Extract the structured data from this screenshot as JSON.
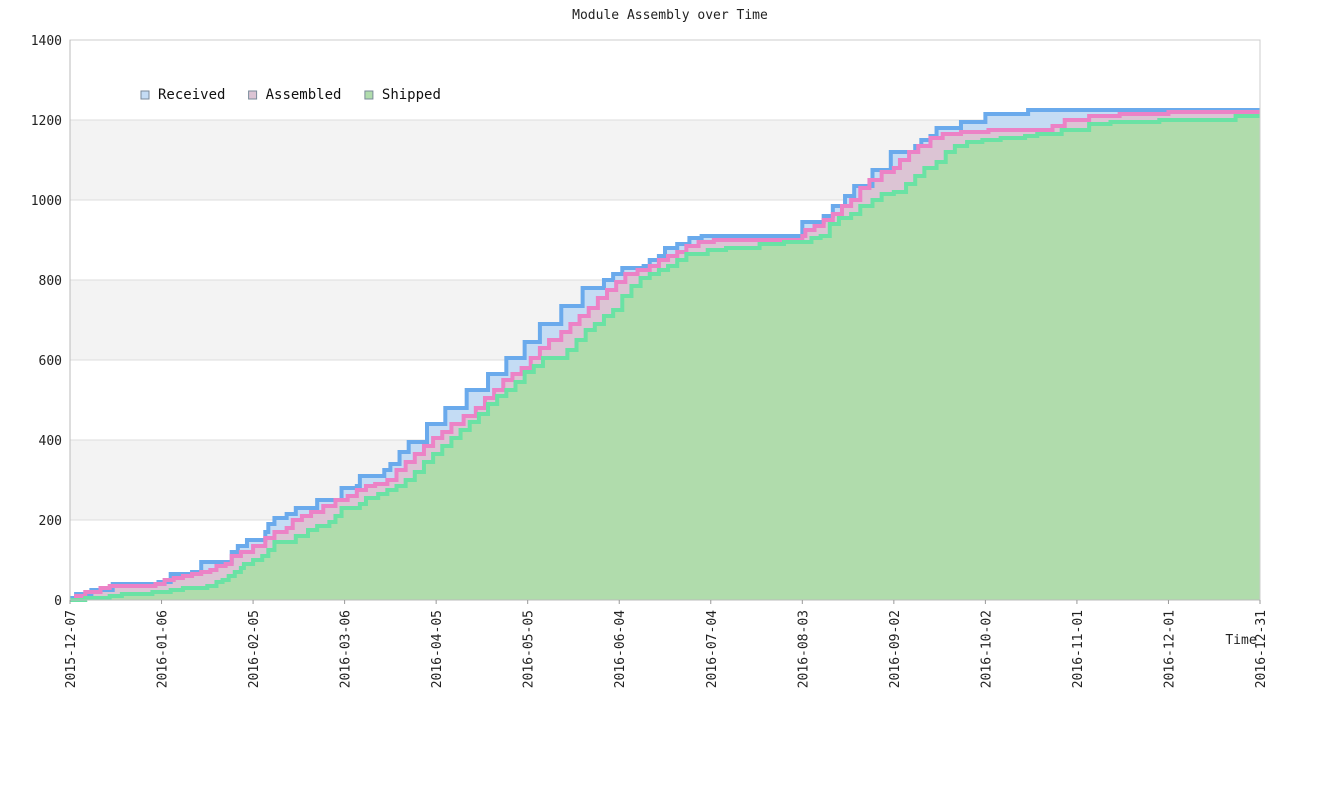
{
  "chart_data": {
    "type": "area",
    "title": "Module Assembly over Time",
    "xlabel": "Time",
    "ylabel": "",
    "ylim": [
      0,
      1400
    ],
    "yticks": [
      0,
      200,
      400,
      600,
      800,
      1000,
      1200,
      1400
    ],
    "xlim": [
      "2015-12-07",
      "2016-12-31"
    ],
    "xticks": [
      "2015-12-07",
      "2016-01-06",
      "2016-02-05",
      "2016-03-06",
      "2016-04-05",
      "2016-05-05",
      "2016-06-04",
      "2016-07-04",
      "2016-08-03",
      "2016-09-02",
      "2016-10-02",
      "2016-11-01",
      "2016-12-01",
      "2016-12-31"
    ],
    "grid": "horizontal alternating bands",
    "legend_placement": "top-left",
    "step": true,
    "series": [
      {
        "name": "Received",
        "color": "#6aaaec",
        "fill": "#c4dcf4",
        "points": [
          [
            "2015-12-07",
            5
          ],
          [
            "2015-12-09",
            15
          ],
          [
            "2015-12-14",
            25
          ],
          [
            "2015-12-21",
            40
          ],
          [
            "2016-01-05",
            45
          ],
          [
            "2016-01-09",
            65
          ],
          [
            "2016-01-16",
            70
          ],
          [
            "2016-01-19",
            95
          ],
          [
            "2016-01-29",
            120
          ],
          [
            "2016-01-31",
            135
          ],
          [
            "2016-02-03",
            150
          ],
          [
            "2016-02-09",
            170
          ],
          [
            "2016-02-10",
            190
          ],
          [
            "2016-02-12",
            205
          ],
          [
            "2016-02-16",
            215
          ],
          [
            "2016-02-19",
            230
          ],
          [
            "2016-02-26",
            250
          ],
          [
            "2016-03-05",
            280
          ],
          [
            "2016-03-10",
            285
          ],
          [
            "2016-03-11",
            310
          ],
          [
            "2016-03-19",
            325
          ],
          [
            "2016-03-21",
            340
          ],
          [
            "2016-03-24",
            370
          ],
          [
            "2016-03-27",
            395
          ],
          [
            "2016-04-02",
            440
          ],
          [
            "2016-04-08",
            480
          ],
          [
            "2016-04-15",
            525
          ],
          [
            "2016-04-22",
            565
          ],
          [
            "2016-04-28",
            605
          ],
          [
            "2016-05-04",
            645
          ],
          [
            "2016-05-09",
            690
          ],
          [
            "2016-05-16",
            735
          ],
          [
            "2016-05-23",
            780
          ],
          [
            "2016-05-30",
            800
          ],
          [
            "2016-06-02",
            815
          ],
          [
            "2016-06-05",
            830
          ],
          [
            "2016-06-12",
            835
          ],
          [
            "2016-06-14",
            850
          ],
          [
            "2016-06-17",
            860
          ],
          [
            "2016-06-19",
            880
          ],
          [
            "2016-06-23",
            890
          ],
          [
            "2016-06-27",
            905
          ],
          [
            "2016-07-01",
            910
          ],
          [
            "2016-07-31",
            910
          ],
          [
            "2016-08-03",
            945
          ],
          [
            "2016-08-10",
            960
          ],
          [
            "2016-08-13",
            985
          ],
          [
            "2016-08-17",
            1010
          ],
          [
            "2016-08-20",
            1035
          ],
          [
            "2016-08-26",
            1075
          ],
          [
            "2016-09-01",
            1120
          ],
          [
            "2016-09-09",
            1135
          ],
          [
            "2016-09-11",
            1150
          ],
          [
            "2016-09-14",
            1160
          ],
          [
            "2016-09-16",
            1180
          ],
          [
            "2016-09-24",
            1195
          ],
          [
            "2016-10-02",
            1215
          ],
          [
            "2016-10-16",
            1225
          ],
          [
            "2016-12-31",
            1225
          ]
        ]
      },
      {
        "name": "Assembled",
        "color": "#ec82c6",
        "fill": "#dcc4d4",
        "points": [
          [
            "2015-12-07",
            0
          ],
          [
            "2015-12-09",
            10
          ],
          [
            "2015-12-12",
            20
          ],
          [
            "2015-12-17",
            30
          ],
          [
            "2015-12-20",
            35
          ],
          [
            "2016-01-04",
            40
          ],
          [
            "2016-01-07",
            50
          ],
          [
            "2016-01-10",
            55
          ],
          [
            "2016-01-13",
            60
          ],
          [
            "2016-01-16",
            65
          ],
          [
            "2016-01-19",
            70
          ],
          [
            "2016-01-22",
            75
          ],
          [
            "2016-01-24",
            85
          ],
          [
            "2016-01-27",
            90
          ],
          [
            "2016-01-29",
            110
          ],
          [
            "2016-02-01",
            120
          ],
          [
            "2016-02-05",
            135
          ],
          [
            "2016-02-09",
            155
          ],
          [
            "2016-02-12",
            170
          ],
          [
            "2016-02-16",
            180
          ],
          [
            "2016-02-18",
            200
          ],
          [
            "2016-02-21",
            210
          ],
          [
            "2016-02-24",
            220
          ],
          [
            "2016-02-28",
            235
          ],
          [
            "2016-03-03",
            250
          ],
          [
            "2016-03-07",
            260
          ],
          [
            "2016-03-10",
            275
          ],
          [
            "2016-03-13",
            285
          ],
          [
            "2016-03-16",
            290
          ],
          [
            "2016-03-20",
            300
          ],
          [
            "2016-03-23",
            325
          ],
          [
            "2016-03-26",
            345
          ],
          [
            "2016-03-29",
            365
          ],
          [
            "2016-04-01",
            385
          ],
          [
            "2016-04-04",
            405
          ],
          [
            "2016-04-07",
            420
          ],
          [
            "2016-04-10",
            440
          ],
          [
            "2016-04-14",
            460
          ],
          [
            "2016-04-18",
            480
          ],
          [
            "2016-04-21",
            505
          ],
          [
            "2016-04-24",
            525
          ],
          [
            "2016-04-27",
            550
          ],
          [
            "2016-04-30",
            565
          ],
          [
            "2016-05-03",
            580
          ],
          [
            "2016-05-06",
            605
          ],
          [
            "2016-05-09",
            630
          ],
          [
            "2016-05-12",
            650
          ],
          [
            "2016-05-16",
            670
          ],
          [
            "2016-05-19",
            690
          ],
          [
            "2016-05-22",
            710
          ],
          [
            "2016-05-25",
            730
          ],
          [
            "2016-05-28",
            755
          ],
          [
            "2016-05-31",
            775
          ],
          [
            "2016-06-03",
            795
          ],
          [
            "2016-06-06",
            815
          ],
          [
            "2016-06-10",
            825
          ],
          [
            "2016-06-14",
            835
          ],
          [
            "2016-06-17",
            850
          ],
          [
            "2016-06-20",
            860
          ],
          [
            "2016-06-23",
            870
          ],
          [
            "2016-06-26",
            885
          ],
          [
            "2016-06-30",
            895
          ],
          [
            "2016-07-05",
            900
          ],
          [
            "2016-08-03",
            910
          ],
          [
            "2016-08-04",
            925
          ],
          [
            "2016-08-07",
            935
          ],
          [
            "2016-08-10",
            950
          ],
          [
            "2016-08-13",
            965
          ],
          [
            "2016-08-16",
            985
          ],
          [
            "2016-08-19",
            1000
          ],
          [
            "2016-08-22",
            1030
          ],
          [
            "2016-08-25",
            1050
          ],
          [
            "2016-08-29",
            1070
          ],
          [
            "2016-09-02",
            1080
          ],
          [
            "2016-09-04",
            1100
          ],
          [
            "2016-09-07",
            1120
          ],
          [
            "2016-09-10",
            1135
          ],
          [
            "2016-09-14",
            1155
          ],
          [
            "2016-09-18",
            1165
          ],
          [
            "2016-09-24",
            1170
          ],
          [
            "2016-10-03",
            1175
          ],
          [
            "2016-10-24",
            1185
          ],
          [
            "2016-10-28",
            1200
          ],
          [
            "2016-11-05",
            1210
          ],
          [
            "2016-11-15",
            1215
          ],
          [
            "2016-12-01",
            1220
          ],
          [
            "2016-12-31",
            1220
          ]
        ]
      },
      {
        "name": "Shipped",
        "color": "#6ae2a4",
        "fill": "#b0dcac",
        "points": [
          [
            "2015-12-07",
            0
          ],
          [
            "2015-12-12",
            5
          ],
          [
            "2015-12-20",
            10
          ],
          [
            "2015-12-24",
            15
          ],
          [
            "2016-01-03",
            20
          ],
          [
            "2016-01-09",
            25
          ],
          [
            "2016-01-13",
            30
          ],
          [
            "2016-01-21",
            35
          ],
          [
            "2016-01-24",
            45
          ],
          [
            "2016-01-26",
            50
          ],
          [
            "2016-01-28",
            60
          ],
          [
            "2016-01-30",
            70
          ],
          [
            "2016-02-01",
            80
          ],
          [
            "2016-02-02",
            90
          ],
          [
            "2016-02-05",
            100
          ],
          [
            "2016-02-08",
            110
          ],
          [
            "2016-02-10",
            125
          ],
          [
            "2016-02-12",
            145
          ],
          [
            "2016-02-19",
            160
          ],
          [
            "2016-02-23",
            175
          ],
          [
            "2016-02-26",
            185
          ],
          [
            "2016-03-01",
            195
          ],
          [
            "2016-03-03",
            210
          ],
          [
            "2016-03-05",
            230
          ],
          [
            "2016-03-11",
            240
          ],
          [
            "2016-03-13",
            255
          ],
          [
            "2016-03-17",
            265
          ],
          [
            "2016-03-20",
            275
          ],
          [
            "2016-03-23",
            285
          ],
          [
            "2016-03-26",
            300
          ],
          [
            "2016-03-29",
            320
          ],
          [
            "2016-04-01",
            345
          ],
          [
            "2016-04-04",
            365
          ],
          [
            "2016-04-07",
            385
          ],
          [
            "2016-04-10",
            405
          ],
          [
            "2016-04-13",
            425
          ],
          [
            "2016-04-16",
            445
          ],
          [
            "2016-04-19",
            465
          ],
          [
            "2016-04-22",
            490
          ],
          [
            "2016-04-25",
            510
          ],
          [
            "2016-04-28",
            525
          ],
          [
            "2016-05-01",
            545
          ],
          [
            "2016-05-04",
            570
          ],
          [
            "2016-05-07",
            585
          ],
          [
            "2016-05-10",
            605
          ],
          [
            "2016-05-18",
            625
          ],
          [
            "2016-05-21",
            650
          ],
          [
            "2016-05-24",
            675
          ],
          [
            "2016-05-27",
            690
          ],
          [
            "2016-05-30",
            710
          ],
          [
            "2016-06-02",
            725
          ],
          [
            "2016-06-05",
            760
          ],
          [
            "2016-06-08",
            785
          ],
          [
            "2016-06-11",
            805
          ],
          [
            "2016-06-14",
            815
          ],
          [
            "2016-06-17",
            825
          ],
          [
            "2016-06-20",
            835
          ],
          [
            "2016-06-23",
            850
          ],
          [
            "2016-06-26",
            865
          ],
          [
            "2016-07-03",
            875
          ],
          [
            "2016-07-09",
            880
          ],
          [
            "2016-07-20",
            890
          ],
          [
            "2016-07-28",
            895
          ],
          [
            "2016-08-06",
            905
          ],
          [
            "2016-08-09",
            910
          ],
          [
            "2016-08-12",
            940
          ],
          [
            "2016-08-15",
            955
          ],
          [
            "2016-08-19",
            965
          ],
          [
            "2016-08-22",
            985
          ],
          [
            "2016-08-26",
            1000
          ],
          [
            "2016-08-29",
            1015
          ],
          [
            "2016-09-02",
            1020
          ],
          [
            "2016-09-06",
            1040
          ],
          [
            "2016-09-09",
            1060
          ],
          [
            "2016-09-12",
            1080
          ],
          [
            "2016-09-16",
            1095
          ],
          [
            "2016-09-19",
            1120
          ],
          [
            "2016-09-22",
            1135
          ],
          [
            "2016-09-26",
            1145
          ],
          [
            "2016-10-01",
            1150
          ],
          [
            "2016-10-07",
            1155
          ],
          [
            "2016-10-15",
            1160
          ],
          [
            "2016-10-19",
            1165
          ],
          [
            "2016-10-27",
            1175
          ],
          [
            "2016-11-05",
            1190
          ],
          [
            "2016-11-12",
            1195
          ],
          [
            "2016-11-28",
            1200
          ],
          [
            "2016-12-23",
            1210
          ],
          [
            "2016-12-31",
            1210
          ]
        ]
      }
    ]
  }
}
